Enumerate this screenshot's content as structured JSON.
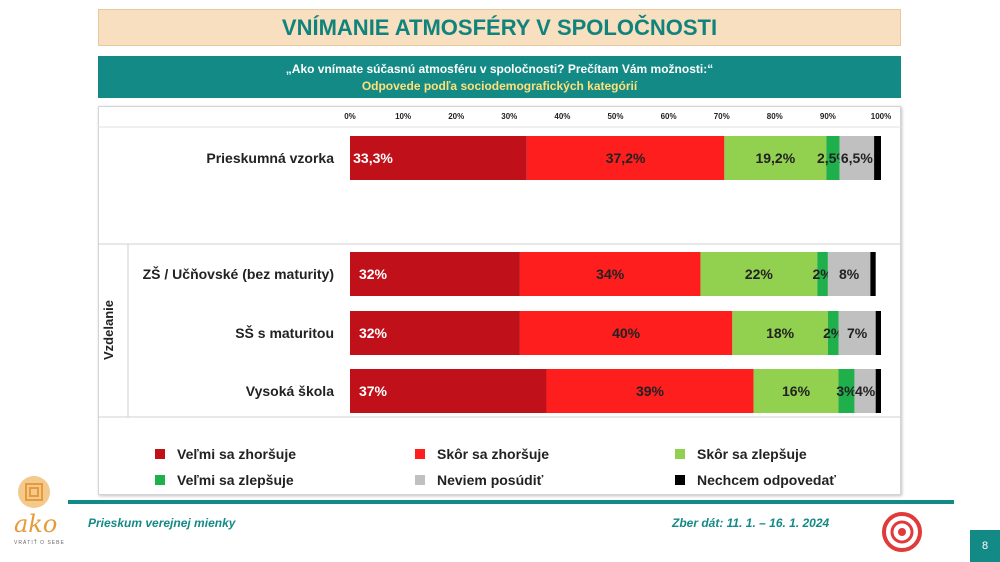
{
  "header": {
    "title": "VNÍMANIE ATMOSFÉRY V SPOLOČNOSTI",
    "question": "„Ako vnímate súčasnú atmosféru v spoločnosti? Prečítam Vám možnosti:“",
    "subtitle": "Odpovede podľa sociodemografických kategórií"
  },
  "chart_data": {
    "type": "bar",
    "orientation": "horizontal",
    "stacked": true,
    "normalized": true,
    "xlim": [
      0,
      100
    ],
    "x_ticks": [
      "0%",
      "10%",
      "20%",
      "30%",
      "40%",
      "50%",
      "60%",
      "70%",
      "80%",
      "90%",
      "100%"
    ],
    "categories": [
      "Prieskumná vzorka",
      "ZŠ / Učňovské (bez maturity)",
      "SŠ s maturitou",
      "Vysoká škola"
    ],
    "group_label": "Vzdelanie",
    "series": [
      {
        "name": "Veľmi sa zhoršuje",
        "color": "#c0111a",
        "values": [
          33.3,
          32,
          32,
          37
        ],
        "labels": [
          "33,3%",
          "32%",
          "32%",
          "37%"
        ],
        "label_color": "#ffffff"
      },
      {
        "name": "Skôr sa zhoršuje",
        "color": "#fe1e1e",
        "values": [
          37.2,
          34,
          40,
          39
        ],
        "labels": [
          "37,2%",
          "34%",
          "40%",
          "39%"
        ],
        "label_color": "#222222"
      },
      {
        "name": "Skôr sa zlepšuje",
        "color": "#92d050",
        "values": [
          19.2,
          22,
          18,
          16
        ],
        "labels": [
          "19,2%",
          "22%",
          "18%",
          "16%"
        ],
        "label_color": "#222222"
      },
      {
        "name": "Veľmi sa zlepšuje",
        "color": "#1fb04b",
        "values": [
          2.5,
          2,
          2,
          3
        ],
        "labels": [
          "2,5%",
          "2%",
          "2%",
          "3%"
        ],
        "label_color": "#222222"
      },
      {
        "name": "Neviem posúdiť",
        "color": "#c0c0c0",
        "values": [
          6.5,
          8,
          7,
          4
        ],
        "labels": [
          "6,5%",
          "8%",
          "7%",
          "4%"
        ],
        "label_color": "#222222"
      },
      {
        "name": "Nechcem odpovedať",
        "color": "#000000",
        "values": [
          1.3,
          1,
          1,
          1
        ],
        "labels": [
          "",
          "",
          "",
          ""
        ],
        "label_color": "#ffffff"
      }
    ]
  },
  "footer": {
    "left": "Prieskum verejnej mienky",
    "right": "Zber dát: 11. 1. – 16. 1. 2024",
    "page": "8",
    "logo_text": "ako",
    "logo_tagline": "VRÁTIŤ O SEBE"
  }
}
